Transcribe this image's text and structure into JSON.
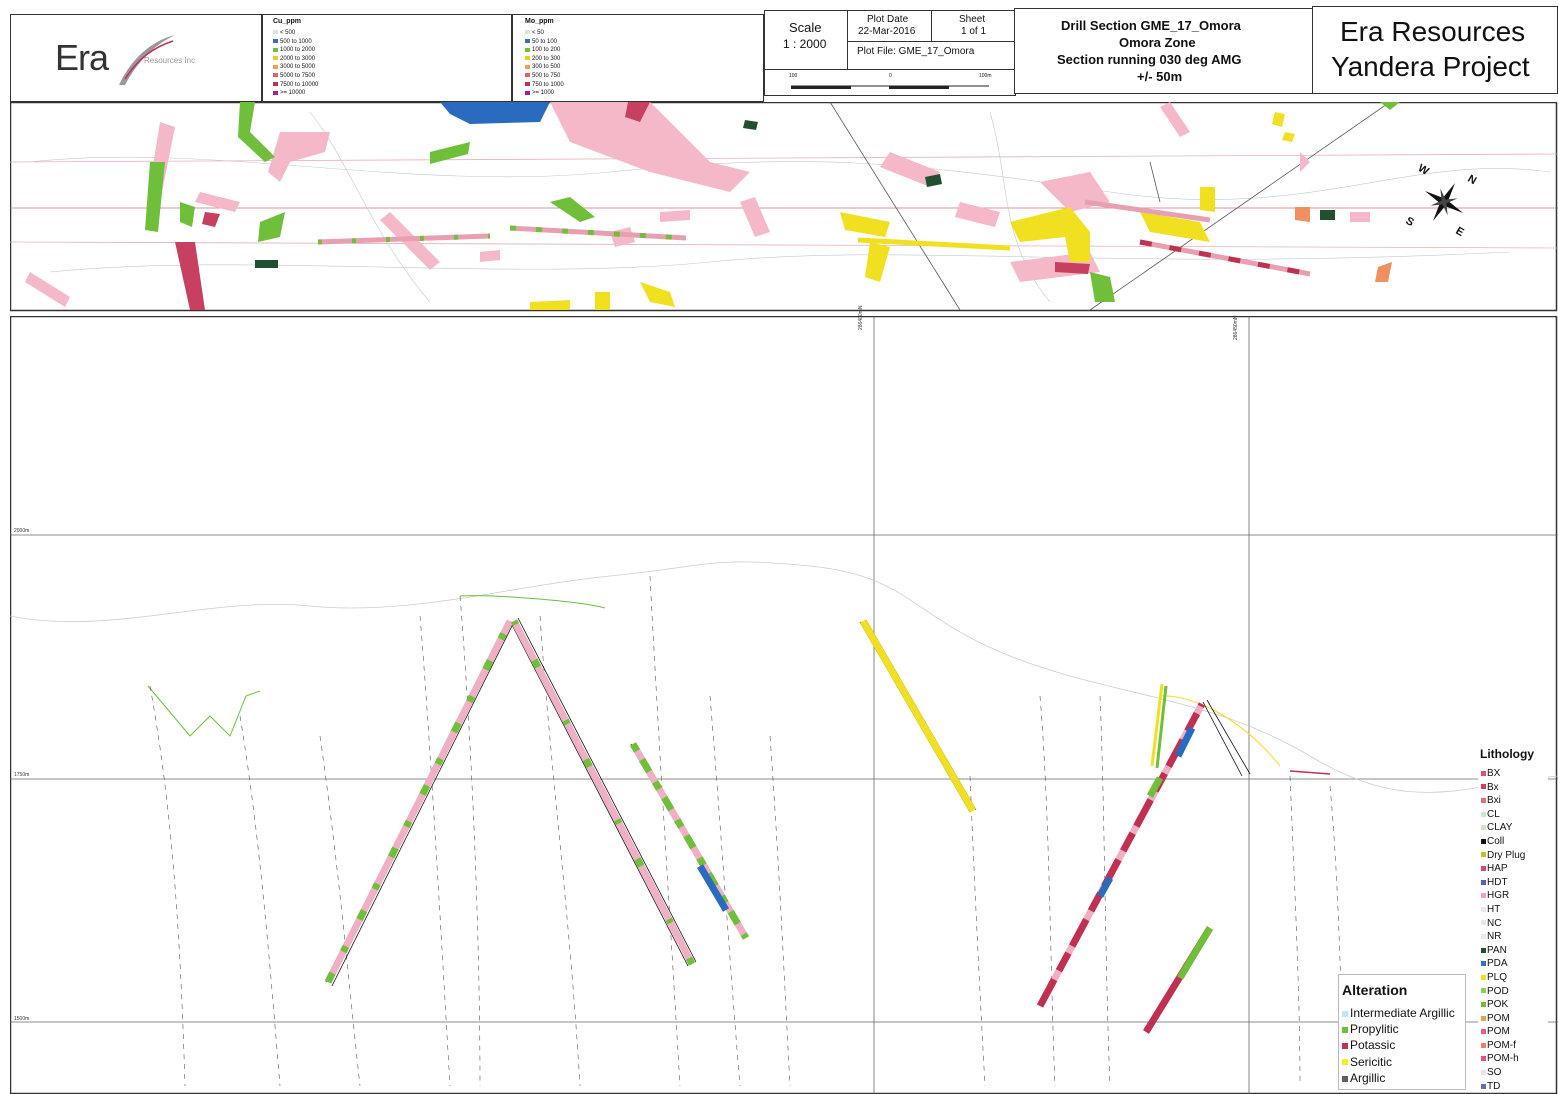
{
  "logo": {
    "main": "Era",
    "sub": "Resources Inc"
  },
  "cu_legend": {
    "title": "Cu_ppm",
    "items": [
      {
        "label": "< 500",
        "color": "#d8e8d8"
      },
      {
        "label": "500 to 1000",
        "color": "#3a6fbf"
      },
      {
        "label": "1000 to 2000",
        "color": "#6fbf3a"
      },
      {
        "label": "2000 to 3000",
        "color": "#e8d020"
      },
      {
        "label": "3000 to 5000",
        "color": "#f0a050"
      },
      {
        "label": "5000 to 7500",
        "color": "#e06070"
      },
      {
        "label": "7500 to 10000",
        "color": "#c03050"
      },
      {
        "label": ">= 10000",
        "color": "#a020a0"
      }
    ]
  },
  "mo_legend": {
    "title": "Mo_ppm",
    "items": [
      {
        "label": "< 50",
        "color": "#d8e8d8"
      },
      {
        "label": "50 to 100",
        "color": "#3a6fbf"
      },
      {
        "label": "100 to 200",
        "color": "#6fbf3a"
      },
      {
        "label": "200 to 300",
        "color": "#e8d020"
      },
      {
        "label": "300 to 500",
        "color": "#f0a050"
      },
      {
        "label": "500 to 750",
        "color": "#e06070"
      },
      {
        "label": "750 to 1000",
        "color": "#c03050"
      },
      {
        "label": ">= 1000",
        "color": "#a020a0"
      }
    ]
  },
  "title_block": {
    "scale_label": "Scale",
    "scale_value": "1 : 2000",
    "plot_date_label": "Plot Date",
    "plot_date": "22-Mar-2016",
    "sheet_label": "Sheet",
    "sheet_value": "1 of 1",
    "plot_file": "Plot File: GME_17_Omora",
    "scalebar_left": "100",
    "scalebar_mid": "0",
    "scalebar_right": "100m",
    "section_title": "Drill Section GME_17_Omora",
    "zone": "Omora Zone",
    "direction": "Section running 030 deg AMG",
    "width": "+/- 50m",
    "company": "Era Resources",
    "project": "Yandera Project"
  },
  "compass": {
    "n": "N",
    "s": "S",
    "e": "E",
    "w": "W"
  },
  "section": {
    "elevation_labels": [
      "2000m",
      "1750m",
      "1500m"
    ],
    "easting_labels": [
      "286400mN",
      "286450mN"
    ]
  },
  "lithology": {
    "title": "Lithology",
    "items": [
      {
        "code": "BX",
        "color": "#e05070"
      },
      {
        "code": "Bx",
        "color": "#d04060"
      },
      {
        "code": "Bxi",
        "color": "#e07080"
      },
      {
        "code": "CL",
        "color": "#c8e8c8"
      },
      {
        "code": "CLAY",
        "color": "#c8e8c8"
      },
      {
        "code": "Coll",
        "color": "#111111"
      },
      {
        "code": "Dry Plug",
        "color": "#c8c020"
      },
      {
        "code": "HAP",
        "color": "#e04080"
      },
      {
        "code": "HDT",
        "color": "#6060b0"
      },
      {
        "code": "HGR",
        "color": "#f0a0c0"
      },
      {
        "code": "HT",
        "color": "#e8e8f0"
      },
      {
        "code": "NC",
        "color": "#e8e8f0"
      },
      {
        "code": "NR",
        "color": "#e8e8f0"
      },
      {
        "code": "PAN",
        "color": "#205030"
      },
      {
        "code": "PDA",
        "color": "#3a6fbf"
      },
      {
        "code": "PLQ",
        "color": "#f0e020"
      },
      {
        "code": "POD",
        "color": "#8fd04f"
      },
      {
        "code": "POK",
        "color": "#6fbf3a"
      },
      {
        "code": "POM",
        "color": "#f0a050"
      },
      {
        "code": "POM",
        "color": "#e06080"
      },
      {
        "code": "POM-f",
        "color": "#f08060"
      },
      {
        "code": "POM-h",
        "color": "#e05080"
      },
      {
        "code": "SO",
        "color": "#f0e0f0"
      },
      {
        "code": "TD",
        "color": "#6070c0"
      }
    ]
  },
  "alteration": {
    "title": "Alteration",
    "items": [
      {
        "label": "Intermediate Argillic",
        "color": "#bfe8f0"
      },
      {
        "label": "Propylitic",
        "color": "#6fbf3a"
      },
      {
        "label": "Potassic",
        "color": "#c03050"
      },
      {
        "label": "Sericitic",
        "color": "#f0f020"
      },
      {
        "label": "Argillic",
        "color": "#606060"
      }
    ]
  }
}
